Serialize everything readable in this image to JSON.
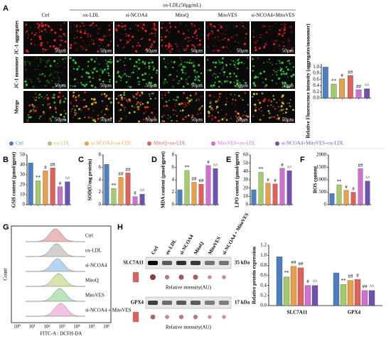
{
  "panel_labels": [
    "A",
    "B",
    "C",
    "D",
    "E",
    "F",
    "G",
    "H"
  ],
  "panel_a": {
    "group_header": "ox-LDL(50μg/mL)",
    "columns": [
      "Ctrl",
      "ox-LDL",
      "si-NCOA4",
      "MitoQ",
      "MitoVES",
      "si-NCOA4+MitoVES"
    ],
    "rows": [
      "JC-1 aggregates",
      "JC-1 monomer",
      "Merge"
    ],
    "scale_bar": "50μm"
  },
  "chart_data": [
    {
      "type": "bar",
      "ylabel": "Relative Fluorescence intensity (aggregates/monomer)",
      "ylim": [
        0,
        1.1
      ],
      "yticks": [
        {
          "value": 0,
          "label": "0.0"
        },
        {
          "value": 0.2,
          "label": "0.2"
        },
        {
          "value": 0.4,
          "label": "0.4"
        },
        {
          "value": 0.6,
          "label": "0.6"
        },
        {
          "value": 0.8,
          "label": "0.8"
        },
        {
          "value": 1,
          "label": "1.0"
        }
      ],
      "values": [
        1.0,
        0.45,
        0.62,
        0.73,
        0.27,
        0.3
      ],
      "annotations": [
        null,
        "**",
        "#",
        "##",
        "##",
        "^^"
      ]
    },
    {
      "type": "bar",
      "ylabel": "GSH  content (μmol/gprot)",
      "ylim": [
        0,
        50
      ],
      "yticks": [
        0,
        10,
        20,
        30,
        40,
        50
      ],
      "values": [
        42,
        24,
        34,
        37,
        18,
        23
      ],
      "annotations": [
        null,
        "**",
        "#",
        "##",
        "#",
        "^^"
      ]
    },
    {
      "type": "bar",
      "ylabel": "SOD(U/mg protein)",
      "ylim": [
        0,
        8
      ],
      "yticks": [
        0,
        2,
        4,
        6,
        8
      ],
      "values": [
        6.5,
        2.6,
        4.4,
        5.1,
        1.3,
        1.7
      ],
      "annotations": [
        null,
        "**",
        "##",
        "##",
        "#",
        "^^"
      ]
    },
    {
      "type": "bar",
      "ylabel": "MDA content (μmol/gprot)",
      "ylim": [
        0,
        8
      ],
      "yticks": [
        0,
        2,
        4,
        6,
        8
      ],
      "values": [
        2.4,
        5.5,
        3.6,
        3.3,
        6.3,
        5.8
      ],
      "annotations": [
        null,
        "**",
        "##",
        "##",
        "#",
        "^^"
      ]
    },
    {
      "type": "bar",
      "ylabel": "LPO content (μmol/gprot)",
      "ylim": [
        0,
        60
      ],
      "yticks": [
        0,
        10,
        20,
        30,
        40,
        50,
        60
      ],
      "values": [
        18,
        39,
        26,
        25,
        44,
        41
      ],
      "annotations": [
        null,
        "**",
        "#",
        "#",
        "#",
        "^^"
      ]
    },
    {
      "type": "bar",
      "ylabel": "ROS content",
      "ylim": [
        0,
        2000
      ],
      "yticks": [
        0,
        500,
        1000,
        1500,
        2000
      ],
      "values": [
        450,
        800,
        580,
        500,
        1450,
        950
      ],
      "annotations": [
        null,
        "**",
        "#",
        "#",
        "##",
        "^^"
      ]
    },
    {
      "type": "grouped_bar",
      "ylabel": "Relative protein expression",
      "categories": [
        "SLC7A11",
        "GPX4"
      ],
      "ylim": [
        0,
        1.2
      ],
      "yticks": [
        {
          "value": 0,
          "label": "0.0"
        },
        {
          "value": 0.2,
          "label": "0.2"
        },
        {
          "value": 0.4,
          "label": "0.4"
        },
        {
          "value": 0.6,
          "label": "0.6"
        },
        {
          "value": 0.8,
          "label": "0.8"
        },
        {
          "value": 1,
          "label": "1.0"
        },
        {
          "value": 1.2,
          "label": "1.2"
        }
      ],
      "series": [
        {
          "name": "Ctrl",
          "color": "#4a7fc1",
          "values": [
            0.97,
            0.65
          ],
          "annotations": [
            null,
            null
          ]
        },
        {
          "name": "ox-LDL",
          "color": "#a6c96a",
          "values": [
            0.57,
            0.42
          ],
          "annotations": [
            "**",
            "**"
          ]
        },
        {
          "name": "si-NCOA4+ox-LDL",
          "color": "#e8a04a",
          "values": [
            0.78,
            0.5
          ],
          "annotations": [
            "##",
            "##"
          ]
        },
        {
          "name": "MitoQ+ox-LDL",
          "color": "#e0605a",
          "values": [
            0.75,
            0.52
          ],
          "annotations": [
            "##",
            "#"
          ]
        },
        {
          "name": "MitoVES+ox-LDL",
          "color": "#d070d0",
          "values": [
            0.4,
            0.3
          ],
          "annotations": [
            "#",
            "##"
          ]
        },
        {
          "name": "si-NCOA4+MitoVES+ox-LDL",
          "color": "#7050b0",
          "values": [
            0.4,
            0.3
          ],
          "annotations": [
            "^^",
            "^^"
          ]
        }
      ]
    }
  ],
  "panel_g": {
    "ylabel": "Count",
    "xlabel": "FITC-A : DCFH-DA",
    "samples": [
      "Ctrl",
      "ox-LDL",
      "si-NCOA4",
      "MitoQ",
      "MitoVES",
      "si-NCOA4 + MitoVES"
    ],
    "xtick_labels": [
      "10⁰",
      "10¹",
      "10²",
      "10³",
      "10⁴",
      "10⁵",
      "10⁶"
    ]
  },
  "panel_h": {
    "lanes": [
      "Ctrl",
      "ox-LDL",
      "si-NCOA4",
      "MitoQ",
      "MitoVES",
      "si-NCOA4 + MitoVES"
    ],
    "proteins": [
      {
        "name": "SLC7A11",
        "size": "35 kDa"
      },
      {
        "name": "GPX4",
        "size": "17 kDa"
      }
    ],
    "intensity_label": "Relative intensity(AU)"
  }
}
